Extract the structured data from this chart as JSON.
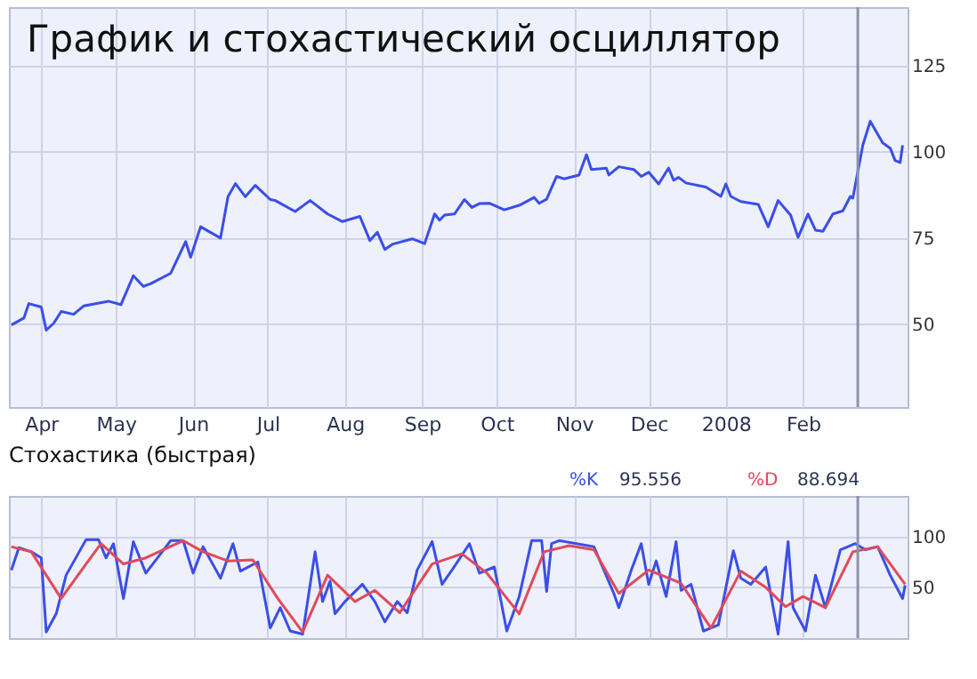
{
  "chart_data": [
    {
      "type": "line",
      "title": "График и стохастический осциллятор",
      "xlim": [
        "2007-03-19",
        "2008-03-14"
      ],
      "ylim": [
        26,
        142
      ],
      "xticks": [
        {
          "value": "2007-04-01",
          "label": "Apr"
        },
        {
          "value": "2007-05-01",
          "label": "May"
        },
        {
          "value": "2007-06-01",
          "label": "Jun"
        },
        {
          "value": "2007-07-01",
          "label": "Jul"
        },
        {
          "value": "2007-08-01",
          "label": "Aug"
        },
        {
          "value": "2007-09-01",
          "label": "Sep"
        },
        {
          "value": "2007-10-01",
          "label": "Oct"
        },
        {
          "value": "2007-11-01",
          "label": "Nov"
        },
        {
          "value": "2007-12-01",
          "label": "Dec"
        },
        {
          "value": "2008-01-01",
          "label": "2008"
        },
        {
          "value": "2008-02-01",
          "label": "Feb"
        }
      ],
      "yticks": [
        50,
        75,
        100,
        125
      ],
      "grid": true,
      "ref_lines": [
        {
          "axis": "x",
          "value": "2008-02-23",
          "label": null,
          "color": "#8a93ad"
        }
      ],
      "series": [
        {
          "color": "#3a4ee8",
          "x": [
            "2007-03-20",
            "2007-03-25",
            "2007-03-27",
            "2007-04-01",
            "2007-04-03",
            "2007-04-06",
            "2007-04-09",
            "2007-04-14",
            "2007-04-18",
            "2007-04-28",
            "2007-05-03",
            "2007-05-08",
            "2007-05-12",
            "2007-05-15",
            "2007-05-23",
            "2007-05-29",
            "2007-05-31",
            "2007-06-04",
            "2007-06-12",
            "2007-06-15",
            "2007-06-18",
            "2007-06-22",
            "2007-06-26",
            "2007-07-02",
            "2007-07-04",
            "2007-07-12",
            "2007-07-18",
            "2007-07-25",
            "2007-07-31",
            "2007-08-07",
            "2007-08-11",
            "2007-08-14",
            "2007-08-17",
            "2007-08-20",
            "2007-08-28",
            "2007-09-02",
            "2007-09-06",
            "2007-09-08",
            "2007-09-10",
            "2007-09-14",
            "2007-09-18",
            "2007-09-21",
            "2007-09-24",
            "2007-09-28",
            "2007-10-04",
            "2007-10-10",
            "2007-10-16",
            "2007-10-18",
            "2007-10-21",
            "2007-10-25",
            "2007-10-28",
            "2007-11-03",
            "2007-11-06",
            "2007-11-08",
            "2007-11-14",
            "2007-11-15",
            "2007-11-19",
            "2007-11-25",
            "2007-11-28",
            "2007-12-01",
            "2007-12-05",
            "2007-12-09",
            "2007-12-11",
            "2007-12-13",
            "2007-12-16",
            "2007-12-24",
            "2007-12-30",
            "2008-01-01",
            "2008-01-03",
            "2008-01-07",
            "2008-01-14",
            "2008-01-18",
            "2008-01-22",
            "2008-01-27",
            "2008-01-30",
            "2008-02-03",
            "2008-02-06",
            "2008-02-09",
            "2008-02-13",
            "2008-02-17",
            "2008-02-20",
            "2008-02-21",
            "2008-02-25",
            "2008-02-28",
            "2008-03-04",
            "2008-03-07",
            "2008-03-09",
            "2008-03-11",
            "2008-03-12"
          ],
          "values": [
            49.8,
            51.8,
            56,
            55,
            48.3,
            50.3,
            53.7,
            52.9,
            55.3,
            56.7,
            55.7,
            64.1,
            61,
            61.8,
            64.8,
            74,
            69.4,
            78.3,
            75,
            87,
            90.8,
            87,
            90.3,
            86.2,
            85.9,
            82.7,
            85.9,
            82,
            79.8,
            81.3,
            74.3,
            76.7,
            71.7,
            73.2,
            74.8,
            73.4,
            82,
            80.2,
            81.7,
            82,
            86.2,
            83.9,
            85,
            85.1,
            83.2,
            84.5,
            86.8,
            85.1,
            86.3,
            92.9,
            92.2,
            93.3,
            99.2,
            94.9,
            95.3,
            93.3,
            95.7,
            94.9,
            92.9,
            94.1,
            90.7,
            95.3,
            91.8,
            92.6,
            91,
            89.8,
            87.1,
            90.7,
            87.1,
            85.6,
            84.8,
            78.3,
            85.9,
            81.7,
            75.2,
            82,
            77.3,
            77,
            82,
            82.9,
            87.1,
            86.6,
            101.9,
            108.9,
            102.6,
            101.1,
            97.5,
            96.9,
            101.9
          ]
        }
      ]
    },
    {
      "type": "line",
      "title": "Стохастика (быстрая)",
      "xlim": [
        "2007-03-19",
        "2008-03-14"
      ],
      "ylim": [
        0,
        140
      ],
      "xticks": [
        {
          "value": "2007-04-01",
          "label": null
        },
        {
          "value": "2007-05-01",
          "label": null
        },
        {
          "value": "2007-06-01",
          "label": null
        },
        {
          "value": "2007-07-01",
          "label": null
        },
        {
          "value": "2007-08-01",
          "label": null
        },
        {
          "value": "2007-09-01",
          "label": null
        },
        {
          "value": "2007-10-01",
          "label": null
        },
        {
          "value": "2007-11-01",
          "label": null
        },
        {
          "value": "2007-12-01",
          "label": null
        },
        {
          "value": "2008-01-01",
          "label": null
        },
        {
          "value": "2008-02-01",
          "label": null
        }
      ],
      "yticks": [
        50,
        100
      ],
      "grid": true,
      "tick_labels": "y",
      "legend": "top right",
      "annotations": [
        "95.556",
        "88.694"
      ],
      "ref_lines": [
        {
          "axis": "x",
          "value": "2008-02-23",
          "label": null,
          "color": "#8a93ad"
        }
      ],
      "series": [
        {
          "name": "%K",
          "color": "#3a4ee8",
          "x": [
            "2007-03-20",
            "2007-03-23",
            "2007-03-28",
            "2007-04-01",
            "2007-04-03",
            "2007-04-07",
            "2007-04-11",
            "2007-04-19",
            "2007-04-24",
            "2007-04-27",
            "2007-04-30",
            "2007-05-04",
            "2007-05-08",
            "2007-05-13",
            "2007-05-18",
            "2007-05-23",
            "2007-05-28",
            "2007-06-01",
            "2007-06-05",
            "2007-06-12",
            "2007-06-17",
            "2007-06-20",
            "2007-06-27",
            "2007-07-02",
            "2007-07-06",
            "2007-07-10",
            "2007-07-15",
            "2007-07-20",
            "2007-07-23",
            "2007-07-26",
            "2007-07-28",
            "2007-08-01",
            "2007-08-08",
            "2007-08-13",
            "2007-08-17",
            "2007-08-22",
            "2007-08-26",
            "2007-08-30",
            "2007-09-05",
            "2007-09-09",
            "2007-09-13",
            "2007-09-20",
            "2007-09-24",
            "2007-09-30",
            "2007-10-05",
            "2007-10-10",
            "2007-10-15",
            "2007-10-19",
            "2007-10-21",
            "2007-10-23",
            "2007-10-26",
            "2007-11-09",
            "2007-11-17",
            "2007-11-19",
            "2007-11-24",
            "2007-11-28",
            "2007-12-01",
            "2007-12-04",
            "2007-12-08",
            "2007-12-12",
            "2007-12-14",
            "2007-12-18",
            "2007-12-23",
            "2007-12-29",
            "2008-01-04",
            "2008-01-07",
            "2008-01-11",
            "2008-01-17",
            "2008-01-22",
            "2008-01-26",
            "2008-01-28",
            "2008-02-02",
            "2008-02-06",
            "2008-02-10",
            "2008-02-16",
            "2008-02-22",
            "2008-02-26",
            "2008-03-02",
            "2008-03-07",
            "2008-03-12",
            "2008-03-13"
          ],
          "values": [
            67,
            89,
            85,
            79,
            6,
            24,
            62,
            97,
            97,
            79,
            93,
            39,
            95,
            64,
            80,
            96,
            96,
            64,
            90,
            59,
            93,
            66,
            75,
            10,
            30,
            7,
            4,
            85,
            36,
            56,
            24,
            36,
            53,
            36,
            16,
            36,
            25,
            67,
            95,
            53,
            67,
            93,
            64,
            70,
            7,
            41,
            96,
            96,
            46,
            93,
            96,
            90,
            44,
            30,
            67,
            93,
            53,
            76,
            41,
            95,
            47,
            53,
            7,
            13,
            86,
            59,
            53,
            70,
            4,
            95,
            30,
            7,
            62,
            30,
            87,
            93,
            87,
            90,
            62,
            39,
            52
          ]
        },
        {
          "name": "%D",
          "color": "#e04a5a",
          "x": [
            "2007-03-20",
            "2007-03-28",
            "2007-04-09",
            "2007-04-19",
            "2007-04-25",
            "2007-05-04",
            "2007-05-13",
            "2007-05-28",
            "2007-06-05",
            "2007-06-15",
            "2007-06-25",
            "2007-07-05",
            "2007-07-15",
            "2007-07-25",
            "2007-08-05",
            "2007-08-13",
            "2007-08-23",
            "2007-09-05",
            "2007-09-17",
            "2007-09-27",
            "2007-10-10",
            "2007-10-20",
            "2007-10-30",
            "2007-11-09",
            "2007-11-19",
            "2007-12-01",
            "2007-12-14",
            "2007-12-26",
            "2008-01-07",
            "2008-01-17",
            "2008-01-25",
            "2008-02-01",
            "2008-02-10",
            "2008-02-21",
            "2008-03-02",
            "2008-03-13"
          ],
          "values": [
            90,
            85,
            39,
            73,
            93,
            73,
            79,
            96,
            85,
            76,
            77,
            39,
            6,
            62,
            36,
            47,
            25,
            73,
            83,
            64,
            24,
            85,
            91,
            87,
            44,
            67,
            54,
            10,
            66,
            50,
            31,
            41,
            30,
            85,
            90,
            53
          ]
        }
      ]
    }
  ]
}
